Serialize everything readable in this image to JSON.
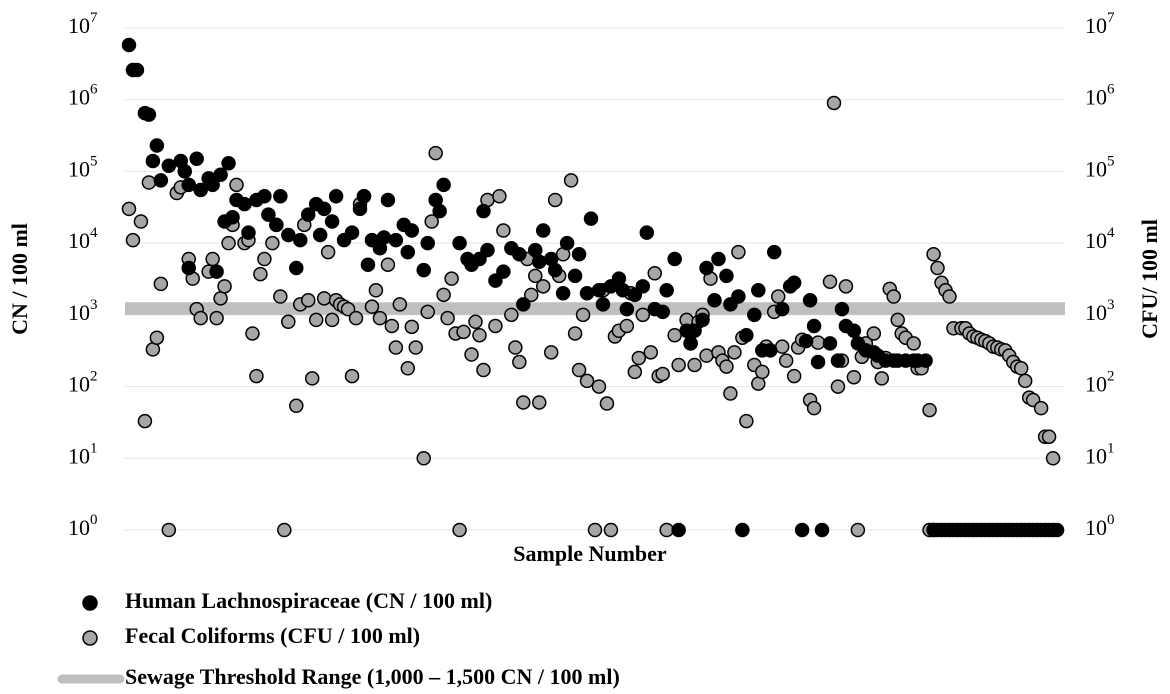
{
  "chart_data": {
    "type": "scatter",
    "y_scale": "log",
    "grid": true,
    "xlabel": "Sample Number",
    "ylabel": "CN / 100 ml",
    "y2label": "CFU/ 100 ml",
    "xlim": [
      0,
      236
    ],
    "ylim": [
      1,
      10000000
    ],
    "y2lim": [
      1,
      10000000
    ],
    "yticks": [
      {
        "value": 1,
        "label": "10",
        "exponent": "0"
      },
      {
        "value": 10,
        "label": "10",
        "exponent": "1"
      },
      {
        "value": 100,
        "label": "10",
        "exponent": "2"
      },
      {
        "value": 1000,
        "label": "10",
        "exponent": "3"
      },
      {
        "value": 10000,
        "label": "10",
        "exponent": "4"
      },
      {
        "value": 100000,
        "label": "10",
        "exponent": "5"
      },
      {
        "value": 1000000,
        "label": "10",
        "exponent": "6"
      },
      {
        "value": 10000000,
        "label": "10",
        "exponent": "7"
      }
    ],
    "y2ticks": [
      {
        "value": 1,
        "label": "10",
        "exponent": "0"
      },
      {
        "value": 10,
        "label": "10",
        "exponent": "1"
      },
      {
        "value": 100,
        "label": "10",
        "exponent": "2"
      },
      {
        "value": 1000,
        "label": "10",
        "exponent": "3"
      },
      {
        "value": 10000,
        "label": "10",
        "exponent": "4"
      },
      {
        "value": 100000,
        "label": "10",
        "exponent": "5"
      },
      {
        "value": 1000000,
        "label": "10",
        "exponent": "6"
      },
      {
        "value": 10000000,
        "label": "10",
        "exponent": "7"
      }
    ],
    "band": {
      "name": "Sewage Threshold Range (1,000 – 1,500 CN / 100 ml)",
      "from": 1000,
      "to": 1500,
      "color": "#bfbfbf"
    },
    "series": [
      {
        "name": "Fecal Coliforms (CFU / 100 ml)",
        "color": "#a6a6a6",
        "x": [
          1,
          2,
          4,
          5,
          6,
          7,
          8,
          9,
          11,
          13,
          14,
          16,
          17,
          18,
          19,
          21,
          22,
          23,
          24,
          25,
          26,
          27,
          28,
          30,
          31,
          32,
          33,
          34,
          35,
          37,
          38,
          39,
          40,
          41,
          43,
          44,
          45,
          46,
          47,
          48,
          50,
          51,
          52,
          53,
          54,
          55,
          56,
          57,
          58,
          59,
          60,
          62,
          63,
          64,
          66,
          67,
          68,
          69,
          71,
          72,
          73,
          75,
          76,
          77,
          78,
          80,
          81,
          82,
          83,
          84,
          85,
          87,
          88,
          89,
          90,
          91,
          93,
          94,
          95,
          97,
          98,
          99,
          100,
          101,
          102,
          103,
          104,
          105,
          107,
          108,
          109,
          110,
          112,
          113,
          114,
          115,
          116,
          118,
          119,
          120,
          121,
          122,
          123,
          124,
          126,
          127,
          128,
          129,
          130,
          132,
          133,
          134,
          135,
          136,
          138,
          139,
          141,
          142,
          143,
          144,
          145,
          146,
          147,
          149,
          150,
          151,
          152,
          153,
          154,
          155,
          156,
          158,
          159,
          160,
          161,
          163,
          164,
          165,
          166,
          168,
          169,
          170,
          172,
          173,
          174,
          177,
          178,
          179,
          180,
          181,
          183,
          184,
          185,
          186,
          188,
          189,
          190,
          191,
          192,
          193,
          194,
          195,
          196,
          198,
          199,
          200,
          202,
          202,
          203,
          203,
          204,
          205,
          206,
          207,
          208,
          210,
          211,
          212,
          213,
          214,
          215,
          216,
          217,
          218,
          219,
          220,
          221,
          222,
          223,
          224,
          225,
          226,
          227,
          228,
          230,
          231,
          232,
          233
        ],
        "values": [
          30000,
          11000,
          20000,
          33,
          70000,
          330,
          480,
          2700,
          1,
          50000,
          60000,
          6000,
          3200,
          1200,
          900,
          4000,
          6000,
          900,
          1700,
          2500,
          10000,
          18000,
          65000,
          10000,
          11000,
          550,
          140,
          3700,
          6000,
          10000,
          18000,
          1800,
          1,
          800,
          54,
          1400,
          18000,
          1600,
          130,
          850,
          1700,
          7500,
          850,
          1600,
          1400,
          1300,
          1200,
          140,
          900,
          35000,
          45000,
          1300,
          2200,
          900,
          5000,
          700,
          350,
          1400,
          180,
          680,
          350,
          10,
          1100,
          20000,
          180000,
          1900,
          900,
          3200,
          550,
          1,
          580,
          280,
          800,
          520,
          170,
          40000,
          700,
          45000,
          15000,
          1000,
          350,
          220,
          60,
          6000,
          1900,
          3500,
          60,
          2500,
          300,
          40000,
          3500,
          7000,
          75000,
          550,
          170,
          1000,
          120,
          1,
          100,
          2200,
          58,
          1,
          500,
          600,
          700,
          2000,
          160,
          250,
          1000,
          300,
          3800,
          140,
          150,
          1,
          520,
          200,
          850,
          400,
          200,
          800,
          1000,
          270,
          3200,
          300,
          230,
          190,
          80,
          300,
          7500,
          480,
          33,
          200,
          110,
          160,
          360,
          1100,
          1800,
          360,
          230,
          140,
          350,
          450,
          65,
          50,
          410,
          2900,
          900000,
          100,
          230,
          2500,
          135,
          1,
          260,
          400,
          550,
          220,
          130,
          250,
          2300,
          1800,
          850,
          550,
          480,
          400,
          180,
          180,
          47,
          1,
          1,
          7000,
          4500,
          2800,
          2200,
          1800,
          650,
          650,
          650,
          550,
          500,
          480,
          450,
          430,
          400,
          360,
          350,
          330,
          320,
          270,
          220,
          190,
          180,
          120,
          70,
          65,
          50,
          20,
          20,
          10
        ]
      },
      {
        "name": "Human Lachnospiraceae (CN / 100 ml)",
        "color": "#000000",
        "x": [
          1,
          2,
          3,
          5,
          6,
          7,
          8,
          9,
          11,
          14,
          15,
          16,
          16,
          18,
          19,
          21,
          22,
          23,
          24,
          25,
          26,
          27,
          28,
          30,
          31,
          33,
          35,
          36,
          38,
          39,
          41,
          43,
          44,
          46,
          48,
          49,
          50,
          52,
          53,
          55,
          57,
          59,
          60,
          61,
          62,
          64,
          65,
          66,
          68,
          70,
          71,
          72,
          75,
          76,
          78,
          79,
          80,
          84,
          86,
          87,
          89,
          90,
          91,
          93,
          95,
          97,
          99,
          100,
          103,
          104,
          105,
          107,
          108,
          110,
          111,
          113,
          114,
          116,
          117,
          119,
          120,
          122,
          124,
          125,
          126,
          128,
          130,
          131,
          133,
          135,
          136,
          138,
          139,
          141,
          142,
          143,
          145,
          146,
          148,
          149,
          151,
          152,
          154,
          155,
          156,
          158,
          159,
          160,
          162,
          163,
          165,
          167,
          168,
          170,
          171,
          172,
          173,
          174,
          175,
          177,
          179,
          180,
          181,
          183,
          184,
          186,
          188,
          189,
          191,
          193,
          194,
          196,
          198,
          199,
          201,
          203,
          204,
          205,
          206,
          207,
          208,
          209,
          210,
          211,
          212,
          213,
          214,
          215,
          216,
          217,
          218,
          219,
          220,
          221,
          222,
          223,
          224,
          225,
          226,
          227,
          228,
          229,
          230,
          231,
          232,
          233,
          234
        ],
        "values": [
          5800000,
          2600000,
          2600000,
          650000,
          620000,
          140000,
          230000,
          75000,
          120000,
          140000,
          100000,
          65000,
          4500,
          150000,
          55000,
          80000,
          65000,
          4000,
          90000,
          20000,
          130000,
          23000,
          40000,
          35000,
          14000,
          40000,
          45000,
          25000,
          18000,
          45000,
          13000,
          4500,
          11000,
          25000,
          35000,
          13000,
          30000,
          20000,
          45000,
          11000,
          14000,
          30000,
          45000,
          5000,
          11000,
          8500,
          12000,
          40000,
          11000,
          18000,
          7500,
          15000,
          4200,
          10000,
          40000,
          28000,
          65000,
          10000,
          6000,
          5000,
          6000,
          28000,
          8000,
          3000,
          4000,
          8500,
          7000,
          1400,
          8000,
          5500,
          15000,
          6000,
          4200,
          2000,
          10000,
          3500,
          7000,
          2000,
          22000,
          2200,
          1400,
          2500,
          3200,
          2200,
          1200,
          1900,
          2500,
          14000,
          1200,
          1100,
          2200,
          6000,
          1,
          600,
          400,
          600,
          850,
          4500,
          1600,
          6000,
          3500,
          1400,
          1800,
          1,
          520,
          1000,
          2200,
          320,
          320,
          7500,
          1200,
          2500,
          2800,
          1,
          430,
          1600,
          700,
          220,
          1,
          400,
          230,
          1200,
          700,
          600,
          400,
          320,
          300,
          270,
          230,
          230,
          230,
          230,
          230,
          230,
          230,
          1,
          1,
          1,
          1,
          1,
          1,
          1,
          1,
          1,
          1,
          1,
          1,
          1,
          1,
          1,
          1,
          1,
          1,
          1,
          1,
          1,
          1,
          1,
          1,
          1,
          1,
          1,
          1,
          1,
          1,
          1,
          1
        ]
      }
    ]
  }
}
